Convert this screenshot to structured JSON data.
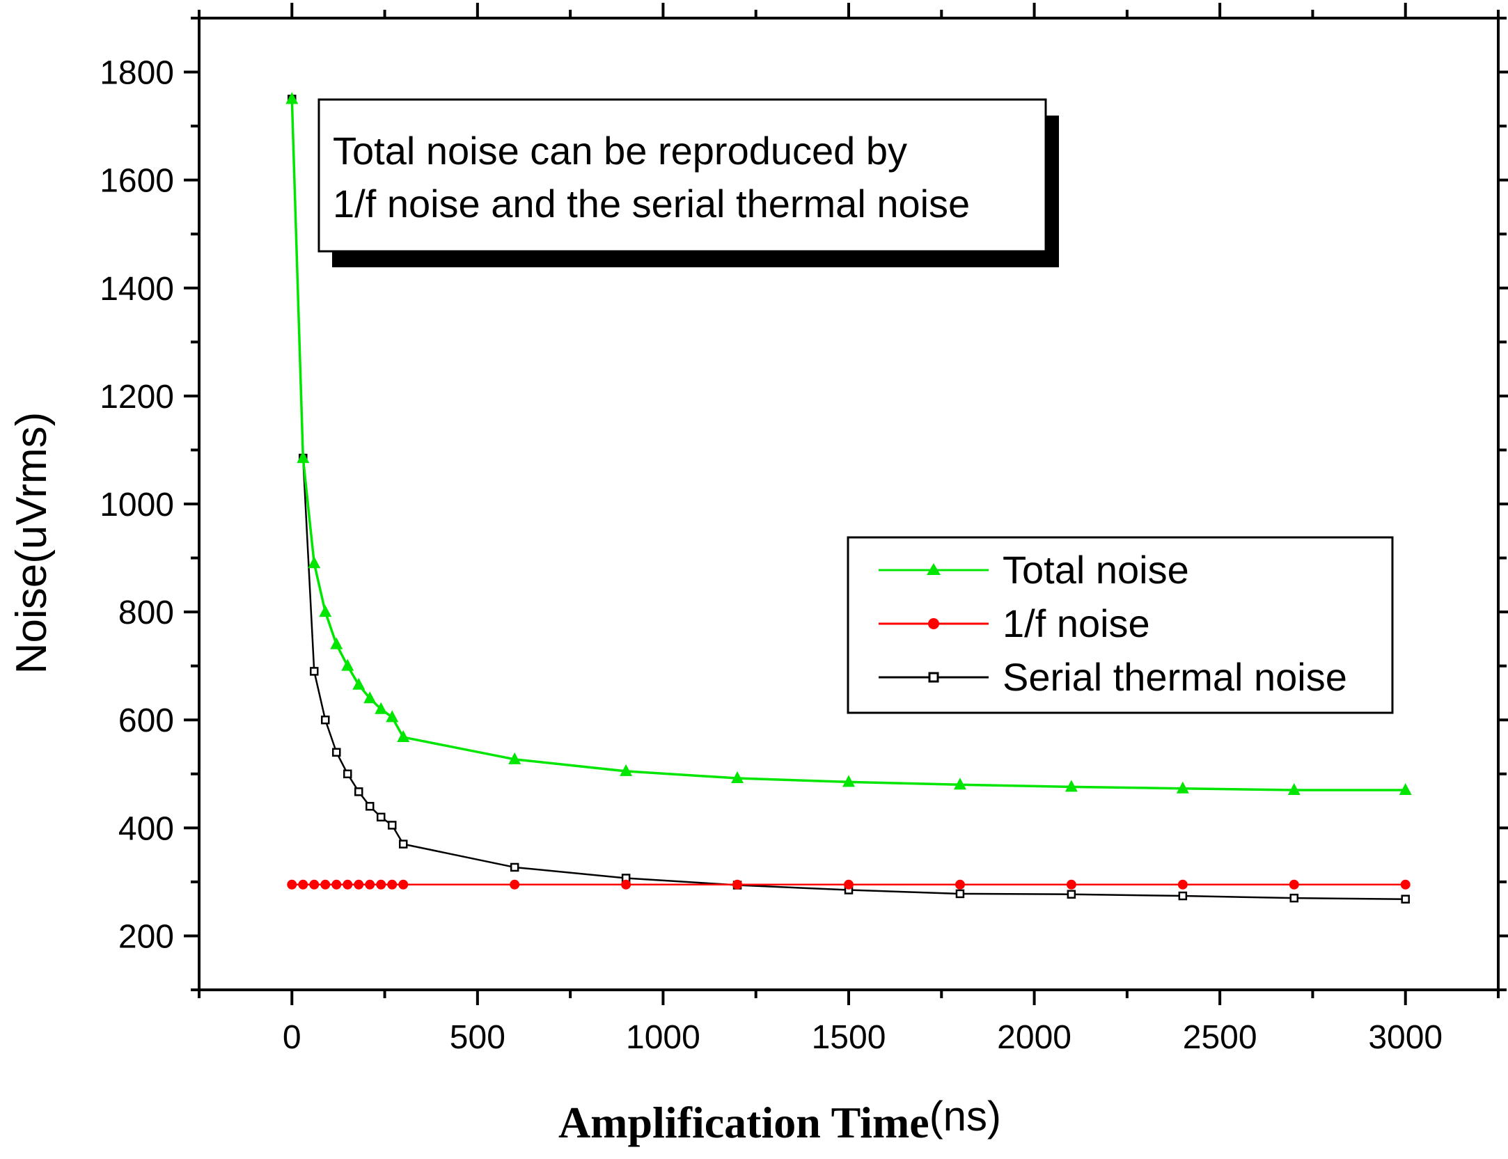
{
  "chart_data": {
    "type": "line",
    "title": "",
    "xlabel": "Amplification Time",
    "xlabel_unit": "(ns)",
    "ylabel": "Noise(uVrms)",
    "xlim": [
      -250,
      3250
    ],
    "ylim": [
      100,
      1900
    ],
    "xticks": [
      0,
      500,
      1000,
      1500,
      2000,
      2500,
      3000
    ],
    "yticks": [
      200,
      400,
      600,
      800,
      1000,
      1200,
      1400,
      1600,
      1800
    ],
    "xtick_labels": [
      "0",
      "500",
      "1000",
      "1500",
      "2000",
      "2500",
      "3000"
    ],
    "ytick_labels": [
      "200",
      "400",
      "600",
      "800",
      "1000",
      "1200",
      "1400",
      "1600",
      "1800"
    ],
    "x": [
      0,
      30,
      60,
      90,
      120,
      150,
      180,
      210,
      240,
      270,
      300,
      600,
      900,
      1200,
      1500,
      1800,
      2100,
      2400,
      2700,
      3000
    ],
    "series": [
      {
        "name": "Total noise",
        "color": "#00e600",
        "marker": "triangle",
        "values": [
          1750,
          1085,
          890,
          800,
          740,
          700,
          665,
          640,
          620,
          605,
          568,
          527,
          505,
          492,
          485,
          480,
          476,
          473,
          470,
          470
        ]
      },
      {
        "name": "1/f noise",
        "color": "#ff0000",
        "marker": "circle",
        "values": [
          295,
          295,
          295,
          295,
          295,
          295,
          295,
          295,
          295,
          295,
          295,
          295,
          295,
          295,
          295,
          295,
          295,
          295,
          295,
          295
        ]
      },
      {
        "name": "Serial thermal noise",
        "color": "#000000",
        "marker": "square-open",
        "values": [
          1750,
          1085,
          690,
          600,
          540,
          500,
          467,
          440,
          420,
          405,
          370,
          327,
          307,
          294,
          285,
          278,
          277,
          274,
          270,
          268
        ]
      }
    ],
    "annotation": {
      "lines": [
        "Total noise can be reproduced by",
        "1/f noise and the serial thermal noise"
      ]
    },
    "legend": {
      "position": "right-middle",
      "entries": [
        "Total noise",
        "1/f noise",
        "Serial thermal noise"
      ]
    },
    "grid": false
  }
}
